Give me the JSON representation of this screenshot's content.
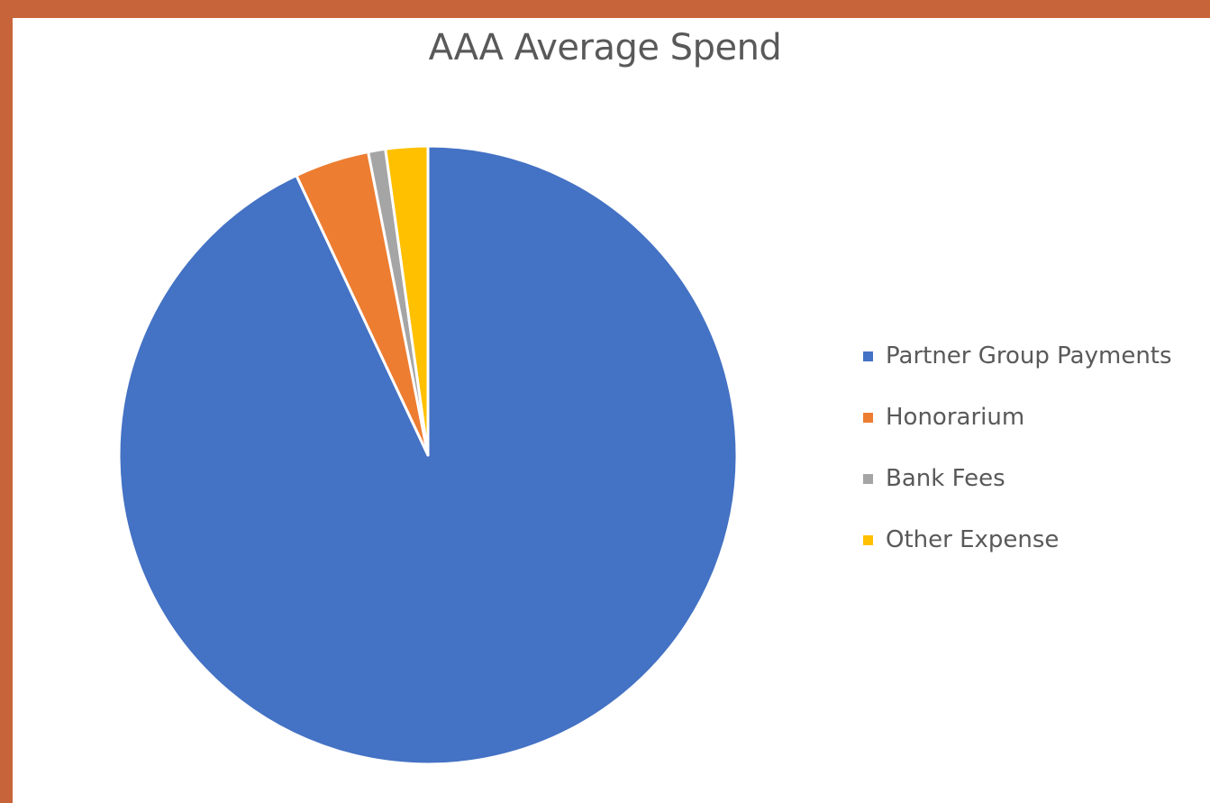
{
  "chart_data": {
    "type": "pie",
    "title": "AAA Average Spend",
    "categories": [
      "Partner Group Payments",
      "Honorarium",
      "Bank Fees",
      "Other Expense"
    ],
    "values": [
      93.0,
      3.9,
      0.9,
      2.2
    ],
    "colors": [
      "#4472c4",
      "#ed7d31",
      "#a5a5a5",
      "#ffc000"
    ],
    "start_angle_deg": 0,
    "direction": "clockwise",
    "legend_position": "right",
    "slice_border_color": "#ffffff"
  }
}
